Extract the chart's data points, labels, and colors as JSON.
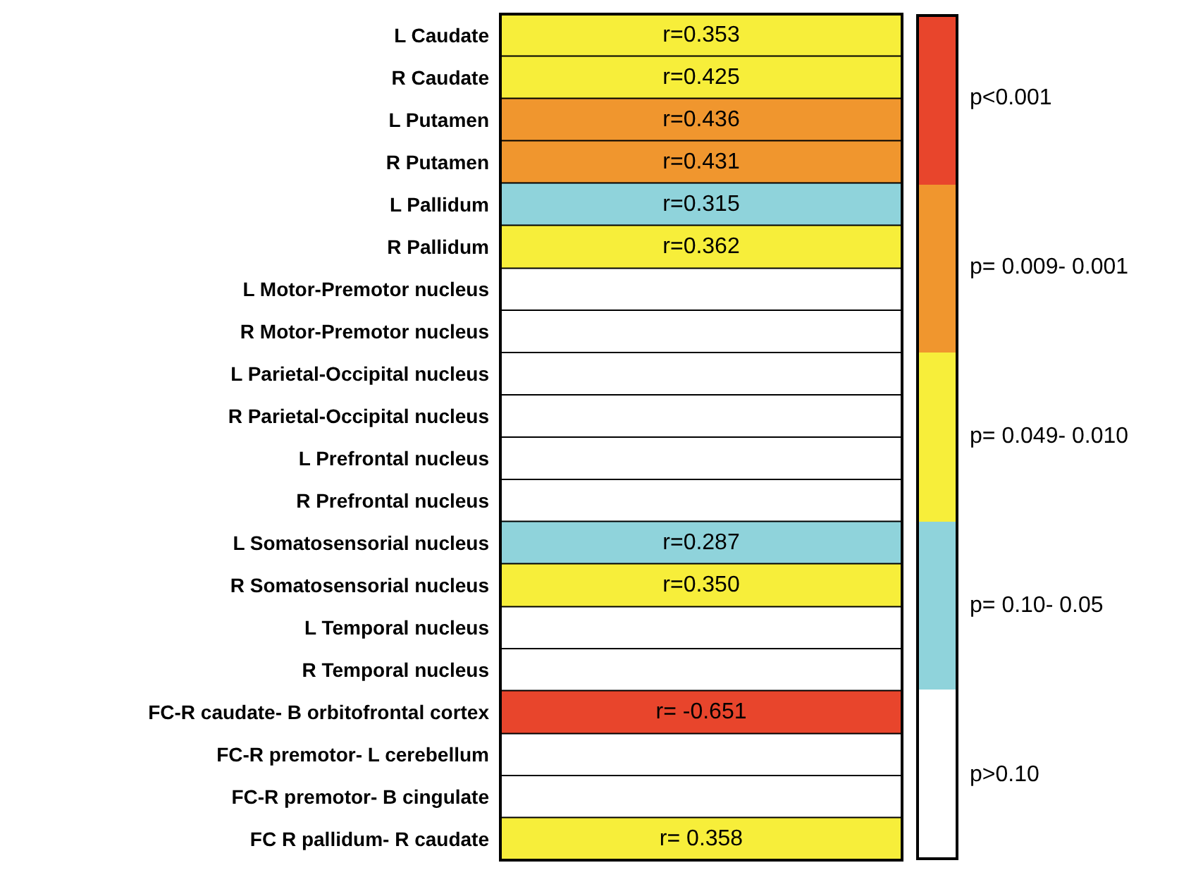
{
  "chart_data": {
    "type": "heatmap",
    "categories": [
      null
    ],
    "y_categories": [
      "L Caudate",
      "R Caudate",
      "L Putamen",
      "R Putamen",
      "L Pallidum",
      "R Pallidum",
      "L Motor-Premotor nucleus",
      "R Motor-Premotor nucleus",
      "L Parietal-Occipital nucleus",
      "R Parietal-Occipital nucleus",
      "L Prefrontal nucleus",
      "R Prefrontal nucleus",
      "L Somatosensorial nucleus",
      "R Somatosensorial nucleus",
      "L Temporal nucleus",
      "R Temporal nucleus",
      "FC-R caudate- B orbitofrontal cortex",
      "FC-R premotor- L cerebellum",
      "FC-R premotor- B cingulate",
      "FC R pallidum- R caudate"
    ],
    "cells": [
      [
        0.353
      ],
      [
        0.425
      ],
      [
        0.436
      ],
      [
        0.431
      ],
      [
        0.315
      ],
      [
        0.362
      ],
      [
        null
      ],
      [
        null
      ],
      [
        null
      ],
      [
        null
      ],
      [
        null
      ],
      [
        null
      ],
      [
        0.287
      ],
      [
        0.35
      ],
      [
        null
      ],
      [
        null
      ],
      [
        -0.651
      ],
      [
        null
      ],
      [
        null
      ],
      [
        0.358
      ]
    ],
    "cell_labels": [
      [
        "r=0.353"
      ],
      [
        "r=0.425"
      ],
      [
        "r=0.436"
      ],
      [
        "r=0.431"
      ],
      [
        "r=0.315"
      ],
      [
        "r=0.362"
      ],
      [
        null
      ],
      [
        null
      ],
      [
        null
      ],
      [
        null
      ],
      [
        null
      ],
      [
        null
      ],
      [
        "r=0.287"
      ],
      [
        "r=0.350"
      ],
      [
        null
      ],
      [
        null
      ],
      [
        "r= -0.651"
      ],
      [
        null
      ],
      [
        null
      ],
      [
        "r= 0.358"
      ]
    ],
    "colors": [
      "#f7ee3a",
      "#f7ee3a",
      "#f0962e",
      "#f0962e",
      "#8fd3db",
      "#f7ee3a",
      null,
      null,
      null,
      null,
      null,
      null,
      "#8fd3db",
      "#f7ee3a",
      null,
      null,
      "#e8452c",
      null,
      null,
      "#f7ee3a"
    ],
    "annotations": [
      "p<0.001",
      "p= 0.009- 0.001",
      "p= 0.049- 0.010",
      "p= 0.10- 0.05",
      "p>0.10"
    ]
  }
}
